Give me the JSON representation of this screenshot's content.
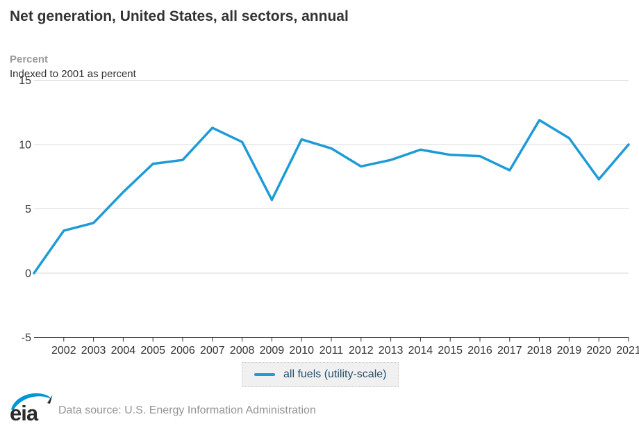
{
  "header": {
    "title": "Net generation, United States, all sectors, annual",
    "unit": "Percent",
    "subtitle": "Indexed to 2001 as percent"
  },
  "legend": {
    "label": "all fuels (utility-scale)"
  },
  "footer": {
    "logo_text": "eia",
    "source": "Data source: U.S. Energy Information Administration"
  },
  "colors": {
    "series": "#1E9BD7",
    "grid": "#d8d8d8",
    "axis": "#333333",
    "tick_text": "#333333",
    "legend_text": "#27516e",
    "legend_bg": "#f0f0f0",
    "eia_blue": "#0096d7",
    "logo_text": "#2b2b2b"
  },
  "chart_data": {
    "type": "line",
    "title": "Net generation, United States, all sectors, annual",
    "subtitle": "Indexed to 2001 as percent",
    "ylabel": "Percent",
    "xlabel": "",
    "x": [
      2001,
      2002,
      2003,
      2004,
      2005,
      2006,
      2007,
      2008,
      2009,
      2010,
      2011,
      2012,
      2013,
      2014,
      2015,
      2016,
      2017,
      2018,
      2019,
      2020,
      2021
    ],
    "series": [
      {
        "name": "all fuels (utility-scale)",
        "values": [
          0,
          3.3,
          3.9,
          6.3,
          8.5,
          8.8,
          11.3,
          10.2,
          5.7,
          10.4,
          9.7,
          8.3,
          8.8,
          9.6,
          9.2,
          9.1,
          8.0,
          11.9,
          10.5,
          7.3,
          10.0
        ]
      }
    ],
    "ylim": [
      -5,
      15
    ],
    "yticks": [
      15,
      10,
      5,
      0,
      -5
    ],
    "xticks": [
      2002,
      2003,
      2004,
      2005,
      2006,
      2007,
      2008,
      2009,
      2010,
      2011,
      2012,
      2013,
      2014,
      2015,
      2016,
      2017,
      2018,
      2019,
      2020,
      2021
    ],
    "grid": true,
    "legend_position": "bottom"
  }
}
